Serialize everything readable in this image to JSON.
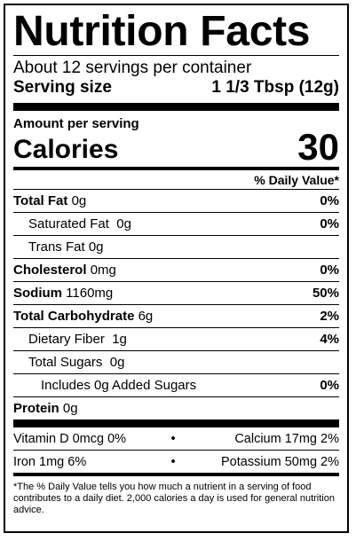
{
  "label": {
    "title": "Nutrition Facts",
    "servings_per_container": "About 12 servings per container",
    "serving_size_label": "Serving size",
    "serving_size_value": "1 1/3 Tbsp (12g)",
    "amount_per_serving": "Amount per serving",
    "calories_label": "Calories",
    "calories_value": "30",
    "dv_header": "% Daily Value*",
    "nutrients": [
      {
        "name": "Total Fat",
        "amount": "0g",
        "dv": "0%"
      },
      {
        "name": "Saturated Fat",
        "amount": "0g",
        "dv": "0%"
      },
      {
        "name": "Trans Fat",
        "amount": "0g",
        "dv": ""
      },
      {
        "name": "Cholesterol",
        "amount": "0mg",
        "dv": "0%"
      },
      {
        "name": "Sodium",
        "amount": "1160mg",
        "dv": "50%"
      },
      {
        "name": "Total Carbohydrate",
        "amount": "6g",
        "dv": "2%"
      },
      {
        "name": "Dietary Fiber",
        "amount": "1g",
        "dv": "4%"
      },
      {
        "name": "Total Sugars",
        "amount": "0g",
        "dv": ""
      },
      {
        "name": "Includes 0g Added Sugars",
        "amount": "",
        "dv": "0%"
      },
      {
        "name": "Protein",
        "amount": "0g",
        "dv": ""
      }
    ],
    "vitamins": [
      {
        "left": "Vitamin D 0mcg 0%",
        "right": "Calcium 17mg 2%"
      },
      {
        "left": "Iron 1mg 6%",
        "right": "Potassium 50mg 2%"
      }
    ],
    "bullet": "•",
    "footnote": "*The % Daily Value tells you how much a nutrient in a serving of food contributes to a daily diet. 2,000 calories a day is used for general nutrition advice."
  }
}
